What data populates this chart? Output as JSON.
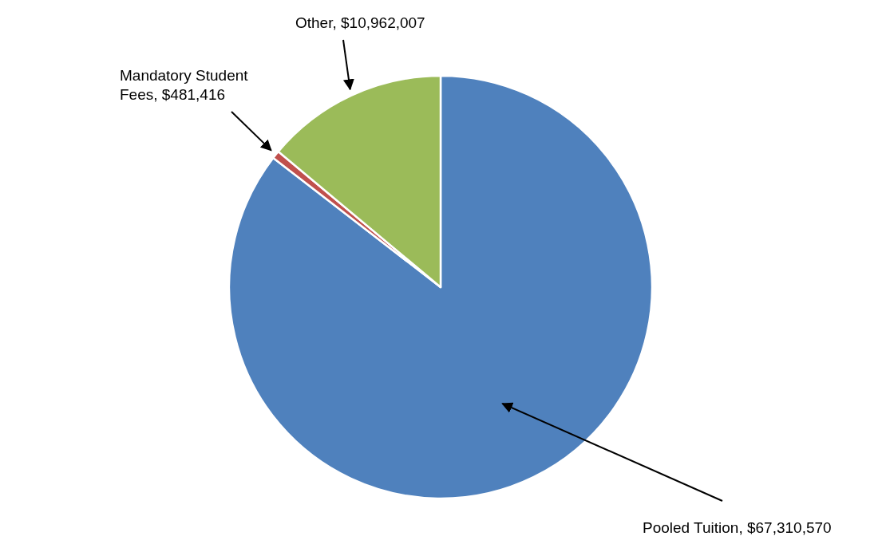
{
  "chart_data": {
    "type": "pie",
    "categories": [
      "Pooled Tuition, $67,310,570",
      "Mandatory Student Fees, $481,416",
      "Other, $10,962,007"
    ],
    "values": [
      67310570,
      481416,
      10962007
    ],
    "colors": [
      "#4f81bd",
      "#c0504d",
      "#9bbb59"
    ]
  }
}
